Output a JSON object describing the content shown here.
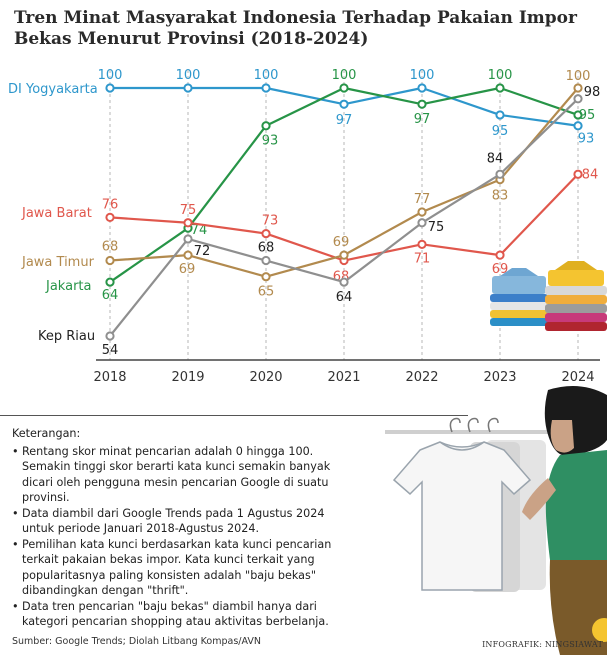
{
  "title": "Tren Minat Masyarakat Indonesia Terhadap Pakaian Impor Bekas Menurut Provinsi (2018-2024)",
  "chart_data": {
    "type": "line",
    "title": "Tren Minat Masyarakat Indonesia Terhadap Pakaian Impor Bekas Menurut Provinsi (2018-2024)",
    "categories": [
      "2018",
      "2019",
      "2020",
      "2021",
      "2022",
      "2023",
      "2024"
    ],
    "ylim": [
      50,
      102
    ],
    "grid": "vertical",
    "series": [
      {
        "name": "DI Yogyakarta",
        "color": "#2e97cc",
        "values": [
          100,
          100,
          100,
          97,
          100,
          95,
          93
        ]
      },
      {
        "name": "Jakarta",
        "color": "#279447",
        "values": [
          64,
          74,
          93,
          100,
          97,
          100,
          95
        ]
      },
      {
        "name": "Jawa Barat",
        "color": "#e0574c",
        "values": [
          76,
          75,
          73,
          68,
          71,
          69,
          84
        ]
      },
      {
        "name": "Jawa Timur",
        "color": "#b28a4e",
        "values": [
          68,
          69,
          65,
          69,
          77,
          83,
          100
        ]
      },
      {
        "name": "Kep Riau",
        "color": "#8f8f8f",
        "label_color": "#222222",
        "values": [
          54,
          72,
          68,
          64,
          75,
          84,
          98
        ]
      }
    ]
  },
  "notes": {
    "heading": "Keterangan:",
    "items": [
      "Rentang skor minat pencarian adalah 0 hingga 100. Semakin tinggi skor berarti kata kunci semakin banyak dicari oleh pengguna mesin pencarian Google di suatu provinsi.",
      "Data diambil dari Google Trends pada 1 Agustus 2024 untuk periode Januari 2018-Agustus 2024.",
      "Pemilihan kata kunci berdasarkan kata kunci pencarian terkait pakaian bekas impor. Kata kunci terkait yang popularitasnya paling konsisten adalah \"baju bekas\" dibandingkan dengan \"thrift\".",
      "Data tren pencarian \"baju bekas\" diambil hanya dari kategori pencarian shopping atau aktivitas berbelanja."
    ]
  },
  "source": "Sumber: Google Trends; Diolah Litbang Kompas/AVN",
  "credit": "INFOGRAFIK: NINGSIAWAT"
}
